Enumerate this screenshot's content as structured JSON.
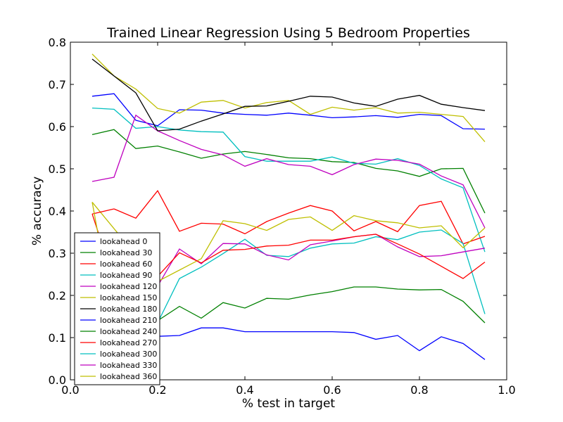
{
  "chart_data": {
    "type": "line",
    "title": "Trained Linear Regression Using 5 Bedroom Properties",
    "xlabel": "% test in target",
    "ylabel": "% accuracy",
    "xlim": [
      0.0,
      1.0
    ],
    "ylim": [
      0.0,
      0.8
    ],
    "xticks": [
      "0.0",
      "0.2",
      "0.4",
      "0.6",
      "0.8",
      "1.0"
    ],
    "yticks": [
      "0.0",
      "0.1",
      "0.2",
      "0.3",
      "0.4",
      "0.5",
      "0.6",
      "0.7",
      "0.8"
    ],
    "grid": false,
    "legend_position": "lower-left",
    "x": [
      0.05,
      0.1,
      0.15,
      0.2,
      0.25,
      0.3,
      0.35,
      0.4,
      0.45,
      0.5,
      0.55,
      0.6,
      0.65,
      0.7,
      0.75,
      0.8,
      0.85,
      0.9,
      0.95
    ],
    "series": [
      {
        "name": "lookahead 0",
        "color": "#0000ff",
        "values": [
          0.672,
          0.678,
          0.615,
          0.602,
          0.64,
          0.639,
          0.632,
          0.629,
          0.627,
          0.632,
          0.627,
          0.621,
          0.623,
          0.626,
          0.622,
          0.629,
          0.626,
          0.595,
          0.594
        ]
      },
      {
        "name": "lookahead 30",
        "color": "#008000",
        "values": [
          0.581,
          0.593,
          0.548,
          0.554,
          0.54,
          0.525,
          0.535,
          0.541,
          0.534,
          0.526,
          0.524,
          0.517,
          0.515,
          0.501,
          0.495,
          0.482,
          0.5,
          0.501,
          0.395
        ]
      },
      {
        "name": "lookahead 60",
        "color": "#ff0000",
        "values": [
          0.393,
          0.235,
          0.0,
          0.0,
          0.0,
          0.0,
          0.0,
          0.0,
          0.0,
          0.0,
          0.0,
          0.0,
          0.0,
          0.0,
          0.0,
          0.0,
          0.0,
          0.0,
          0.0
        ],
        "hidden": true
      },
      {
        "name": "lookahead 90",
        "color": "#00bfbf",
        "values": [
          0.644,
          0.641,
          0.596,
          0.6,
          0.592,
          0.588,
          0.587,
          0.529,
          0.518,
          0.518,
          0.518,
          0.528,
          0.513,
          0.511,
          0.524,
          0.508,
          0.476,
          0.455,
          0.303
        ]
      },
      {
        "name": "lookahead 120",
        "color": "#bf00bf",
        "values": [
          0.47,
          0.48,
          0.627,
          0.59,
          0.567,
          0.546,
          0.533,
          0.506,
          0.524,
          0.51,
          0.506,
          0.486,
          0.51,
          0.523,
          0.52,
          0.511,
          0.483,
          0.462,
          0.36
        ]
      },
      {
        "name": "lookahead 150",
        "color": "#bfbf00",
        "values": [
          0.772,
          0.72,
          0.689,
          0.643,
          0.632,
          0.658,
          0.662,
          0.644,
          0.657,
          0.662,
          0.629,
          0.646,
          0.639,
          0.645,
          0.632,
          0.634,
          0.629,
          0.624,
          0.564
        ]
      },
      {
        "name": "lookahead 180",
        "color": "#000000",
        "values": [
          0.76,
          0.72,
          0.68,
          0.59,
          0.594,
          0.613,
          0.63,
          0.648,
          0.649,
          0.66,
          0.672,
          0.67,
          0.656,
          0.648,
          0.665,
          0.674,
          0.653,
          0.645,
          0.638
        ]
      },
      {
        "name": "lookahead 210",
        "color": "#0000ff",
        "values": [
          0.0,
          0.0,
          0.0,
          0.103,
          0.105,
          0.123,
          0.123,
          0.114,
          0.114,
          0.114,
          0.114,
          0.114,
          0.112,
          0.096,
          0.105,
          0.069,
          0.102,
          0.086,
          0.048
        ]
      },
      {
        "name": "lookahead 240",
        "color": "#008000",
        "values": [
          0.0,
          0.0,
          0.0,
          0.14,
          0.174,
          0.146,
          0.183,
          0.17,
          0.193,
          0.191,
          0.201,
          0.209,
          0.22,
          0.22,
          0.215,
          0.213,
          0.214,
          0.186,
          0.135
        ]
      },
      {
        "name": "lookahead 270",
        "color": "#ff0000",
        "values": [
          0.0,
          0.405,
          0.383,
          0.448,
          0.352,
          0.371,
          0.369,
          0.346,
          0.375,
          0.395,
          0.413,
          0.4,
          0.353,
          0.375,
          0.351,
          0.413,
          0.423,
          0.322,
          0.34
        ]
      },
      {
        "name": "lookahead 300",
        "color": "#00bfbf",
        "values": [
          0.0,
          0.0,
          0.0,
          0.135,
          0.24,
          0.267,
          0.299,
          0.333,
          0.295,
          0.292,
          0.312,
          0.322,
          0.324,
          0.339,
          0.332,
          0.35,
          0.355,
          0.323,
          0.156
        ]
      },
      {
        "name": "lookahead 330",
        "color": "#bf00bf",
        "values": [
          0.0,
          0.0,
          0.0,
          0.222,
          0.31,
          0.275,
          0.323,
          0.322,
          0.296,
          0.284,
          0.32,
          0.329,
          0.339,
          0.345,
          0.315,
          0.292,
          0.294,
          0.303,
          0.312
        ]
      },
      {
        "name": "lookahead 360",
        "color": "#bfbf00",
        "values": [
          0.421,
          0.0,
          0.0,
          0.233,
          0.26,
          0.287,
          0.377,
          0.37,
          0.354,
          0.38,
          0.386,
          0.354,
          0.389,
          0.377,
          0.372,
          0.36,
          0.365,
          0.313,
          0.36
        ]
      }
    ],
    "extra_segments": [
      {
        "color": "#ff0000",
        "points": [
          [
            0.2,
            0.245
          ],
          [
            0.25,
            0.301
          ],
          [
            0.3,
            0.277
          ],
          [
            0.35,
            0.307
          ],
          [
            0.4,
            0.309
          ],
          [
            0.45,
            0.317
          ],
          [
            0.5,
            0.319
          ],
          [
            0.55,
            0.331
          ],
          [
            0.6,
            0.331
          ],
          [
            0.65,
            0.339
          ],
          [
            0.7,
            0.345
          ],
          [
            0.75,
            0.322
          ],
          [
            0.8,
            0.298
          ],
          [
            0.85,
            0.269
          ],
          [
            0.9,
            0.24
          ],
          [
            0.95,
            0.279
          ]
        ]
      }
    ]
  }
}
